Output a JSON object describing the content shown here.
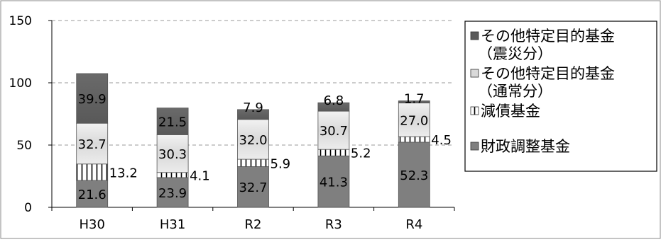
{
  "chart_data": {
    "type": "bar",
    "stacked": true,
    "categories": [
      "H30",
      "H31",
      "R2",
      "R3",
      "R4"
    ],
    "ylim": [
      0,
      150
    ],
    "yticks": [
      0,
      50,
      100,
      150
    ],
    "grid": true,
    "legend_position": "right",
    "series": [
      {
        "name": "財政調整基金",
        "values": [
          21.6,
          23.9,
          32.7,
          41.3,
          52.3
        ],
        "labels": [
          "21.6",
          "23.9",
          "32.7",
          "41.3",
          "52.3"
        ],
        "color": "#7f7f7f",
        "pattern": "solid"
      },
      {
        "name": "減債基金",
        "values": [
          13.2,
          4.1,
          5.9,
          5.2,
          4.5
        ],
        "labels": [
          "13.2",
          "4.1",
          "5.9",
          "5.2",
          "4.5"
        ],
        "color": "#ffffff",
        "pattern": "vertical-lines"
      },
      {
        "name": "その他特定目的基金（通常分）",
        "values": [
          32.7,
          30.3,
          32.0,
          30.7,
          27.0
        ],
        "labels": [
          "32.7",
          "30.3",
          "32.0",
          "30.7",
          "27.0"
        ],
        "color": "#d9d9d9",
        "pattern": "solid"
      },
      {
        "name": "その他特定目的基金（震災分）",
        "values": [
          39.9,
          21.5,
          7.9,
          6.8,
          1.7
        ],
        "labels": [
          "39.9",
          "21.5",
          "7.9",
          "6.8",
          "1.7"
        ],
        "color": "#595959",
        "pattern": "solid"
      }
    ],
    "legend": [
      {
        "lines": [
          "その他特定目的基金",
          "（震災分）"
        ],
        "series_index": 3
      },
      {
        "lines": [
          "その他特定目的基金",
          "（通常分）"
        ],
        "series_index": 2
      },
      {
        "lines": [
          "減債基金"
        ],
        "series_index": 1
      },
      {
        "lines": [
          "財政調整基金"
        ],
        "series_index": 0
      }
    ]
  }
}
